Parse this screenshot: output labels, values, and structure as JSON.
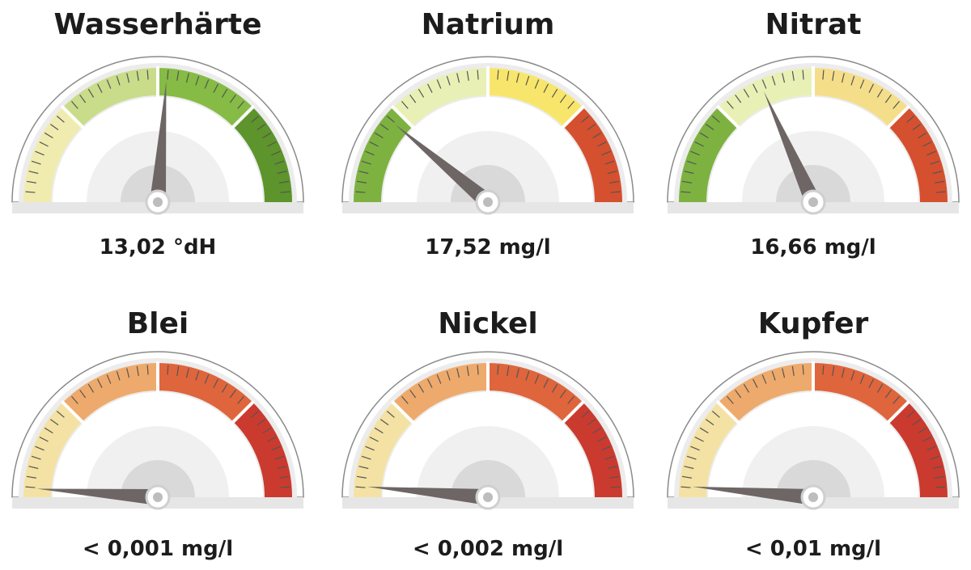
{
  "gauges": [
    {
      "title": "Wasserhärte",
      "value": "13,02 °dH"
    },
    {
      "title": "Natrium",
      "value": "17,52 mg/l"
    },
    {
      "title": "Nitrat",
      "value": "16,66 mg/l"
    },
    {
      "title": "Blei",
      "value": "< 0,001 mg/l"
    },
    {
      "title": "Nickel",
      "value": "< 0,002 mg/l"
    },
    {
      "title": "Kupfer",
      "value": "< 0,01 mg/l"
    }
  ]
}
